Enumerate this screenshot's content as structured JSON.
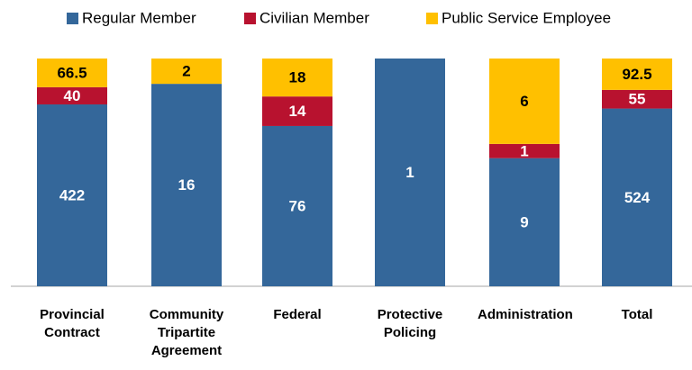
{
  "chart_data": {
    "type": "stacked_bar_100",
    "categories": [
      "Provincial Contract",
      "Community Tripartite Agreement",
      "Federal",
      "Protective Policing",
      "Administration",
      "Total"
    ],
    "series": [
      {
        "name": "Regular Member",
        "color": "#34679a",
        "values": [
          422,
          16,
          76,
          1,
          9,
          524
        ]
      },
      {
        "name": "Civilian Member",
        "color": "#b8122f",
        "values": [
          40,
          null,
          14,
          null,
          1,
          55
        ]
      },
      {
        "name": "Public Service Employee",
        "color": "#ffc000",
        "values": [
          66.5,
          2,
          18,
          null,
          6,
          92.5
        ]
      }
    ],
    "legend": "top"
  }
}
